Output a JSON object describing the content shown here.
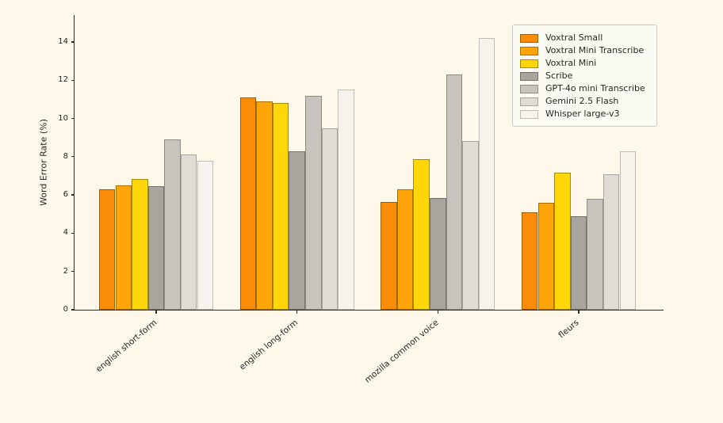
{
  "figure": {
    "background_color": "#FDF8E9",
    "text_color": "#262626",
    "axis_color": "#2B2B28"
  },
  "chart_data": {
    "type": "bar",
    "title": "",
    "xlabel": "",
    "ylabel": "Word Error Rate (%)",
    "ylim": [
      0,
      15.4
    ],
    "yticks": [
      0,
      2,
      4,
      6,
      8,
      10,
      12,
      14
    ],
    "grid": false,
    "legend_position": "upper right",
    "categories": [
      "english short-form",
      "english long-form",
      "mozilla common voice",
      "fleurs"
    ],
    "series": [
      {
        "name": "Voxtral Small",
        "fill": "#FA8C0A",
        "edge": "#9C5F00",
        "values": [
          6.3,
          11.1,
          5.65,
          5.1
        ]
      },
      {
        "name": "Voxtral Mini Transcribe",
        "fill": "#FFA50A",
        "edge": "#AA7000",
        "values": [
          6.5,
          10.9,
          6.3,
          5.6
        ]
      },
      {
        "name": "Voxtral Mini",
        "fill": "#FFD60A",
        "edge": "#A18E00",
        "values": [
          6.85,
          10.8,
          7.85,
          7.15
        ]
      },
      {
        "name": "Scribe",
        "fill": "#A7A59D",
        "edge": "#73716A",
        "values": [
          6.45,
          8.3,
          5.85,
          4.9
        ]
      },
      {
        "name": "GPT-4o mini Transcribe",
        "fill": "#C6C4BC",
        "edge": "#8D8B84",
        "values": [
          8.9,
          11.2,
          12.3,
          5.8
        ]
      },
      {
        "name": "Gemini 2.5 Flash",
        "fill": "#DEDCD4",
        "edge": "#A6A49D",
        "values": [
          8.1,
          9.5,
          8.8,
          7.1
        ]
      },
      {
        "name": "Whisper large-v3",
        "fill": "#F5F3EB",
        "edge": "#BFBDB5",
        "values": [
          7.8,
          11.5,
          14.2,
          8.3
        ]
      }
    ]
  }
}
